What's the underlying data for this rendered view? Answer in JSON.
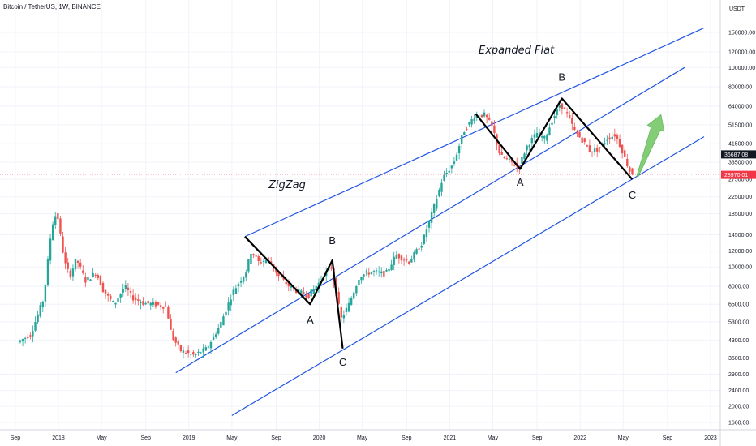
{
  "header": {
    "title": "Bitcoin / TetherUS, 1W, BINANCE"
  },
  "chart_data": {
    "type": "candlestick",
    "y_axis_unit": "USDT",
    "scale": "log",
    "y_ticks": [
      1660,
      2000,
      2400,
      2900,
      3500,
      4300,
      5300,
      6500,
      8000,
      10000,
      12000,
      14500,
      18500,
      22500,
      27500,
      33500,
      41500,
      51500,
      64000,
      80000,
      100000,
      120000,
      150000
    ],
    "y_tick_labels": [
      "1660.00",
      "2000.00",
      "2400.00",
      "2900.00",
      "3500.00",
      "4300.00",
      "5300.00",
      "6500.00",
      "8000.00",
      "10000.00",
      "12000.00",
      "14500.00",
      "18500.00",
      "22500.00",
      "27500.00",
      "33500.00",
      "41500.00",
      "51500.00",
      "64000.00",
      "80000.00",
      "100000.00",
      "120000.00",
      "150000.00"
    ],
    "x_tick_labels": [
      "Sep",
      "2018",
      "May",
      "Sep",
      "2019",
      "May",
      "Sep",
      "2020",
      "May",
      "Sep",
      "2021",
      "May",
      "Sep",
      "2022",
      "May",
      "Sep",
      "2023"
    ],
    "price_markers": [
      {
        "label": "36687.08",
        "value": 36687.08,
        "color": "#131722"
      },
      {
        "label": "28970.01",
        "value": 28970.01,
        "color": "#f23645"
      }
    ],
    "channel_color": "#1e53e5",
    "wave_color": "#000000",
    "arrow_color": "#7ccb6e",
    "up_color": "#26a69a",
    "down_color": "#ef5350",
    "price_path": [
      [
        2017.7,
        4200
      ],
      [
        2017.8,
        4600
      ],
      [
        2017.9,
        7000
      ],
      [
        2017.96,
        16000
      ],
      [
        2018.0,
        19000
      ],
      [
        2018.03,
        14000
      ],
      [
        2018.06,
        10500
      ],
      [
        2018.1,
        9000
      ],
      [
        2018.15,
        11000
      ],
      [
        2018.22,
        8500
      ],
      [
        2018.3,
        9400
      ],
      [
        2018.36,
        7500
      ],
      [
        2018.44,
        6500
      ],
      [
        2018.52,
        8000
      ],
      [
        2018.58,
        7000
      ],
      [
        2018.66,
        6600
      ],
      [
        2018.75,
        6500
      ],
      [
        2018.84,
        6300
      ],
      [
        2018.88,
        4500
      ],
      [
        2018.95,
        3800
      ],
      [
        2019.05,
        3600
      ],
      [
        2019.15,
        3900
      ],
      [
        2019.25,
        5100
      ],
      [
        2019.35,
        7500
      ],
      [
        2019.45,
        9500
      ],
      [
        2019.49,
        12000
      ],
      [
        2019.55,
        10500
      ],
      [
        2019.62,
        11000
      ],
      [
        2019.7,
        9000
      ],
      [
        2019.78,
        8000
      ],
      [
        2019.85,
        7500
      ],
      [
        2019.93,
        7200
      ],
      [
        2020.02,
        8500
      ],
      [
        2020.1,
        10200
      ],
      [
        2020.18,
        5500
      ],
      [
        2020.24,
        6500
      ],
      [
        2020.32,
        9000
      ],
      [
        2020.42,
        9500
      ],
      [
        2020.52,
        9200
      ],
      [
        2020.6,
        11500
      ],
      [
        2020.7,
        10600
      ],
      [
        2020.8,
        13200
      ],
      [
        2020.88,
        19000
      ],
      [
        2020.96,
        28000
      ],
      [
        2021.04,
        33000
      ],
      [
        2021.12,
        48000
      ],
      [
        2021.2,
        57000
      ],
      [
        2021.28,
        58000
      ],
      [
        2021.34,
        50000
      ],
      [
        2021.4,
        36000
      ],
      [
        2021.47,
        34000
      ],
      [
        2021.54,
        31500
      ],
      [
        2021.6,
        40000
      ],
      [
        2021.68,
        47000
      ],
      [
        2021.74,
        44000
      ],
      [
        2021.8,
        55000
      ],
      [
        2021.86,
        66000
      ],
      [
        2021.92,
        57000
      ],
      [
        2021.97,
        48000
      ],
      [
        2022.03,
        43000
      ],
      [
        2022.09,
        38000
      ],
      [
        2022.15,
        39000
      ],
      [
        2022.22,
        44000
      ],
      [
        2022.28,
        46000
      ],
      [
        2022.33,
        39000
      ],
      [
        2022.37,
        33000
      ],
      [
        2022.4,
        29500
      ]
    ]
  },
  "annotations": {
    "zigzag_label": "ZigZag",
    "flat_label": "Expanded Flat",
    "waves": [
      "A",
      "B",
      "C",
      "A",
      "B",
      "C"
    ]
  }
}
